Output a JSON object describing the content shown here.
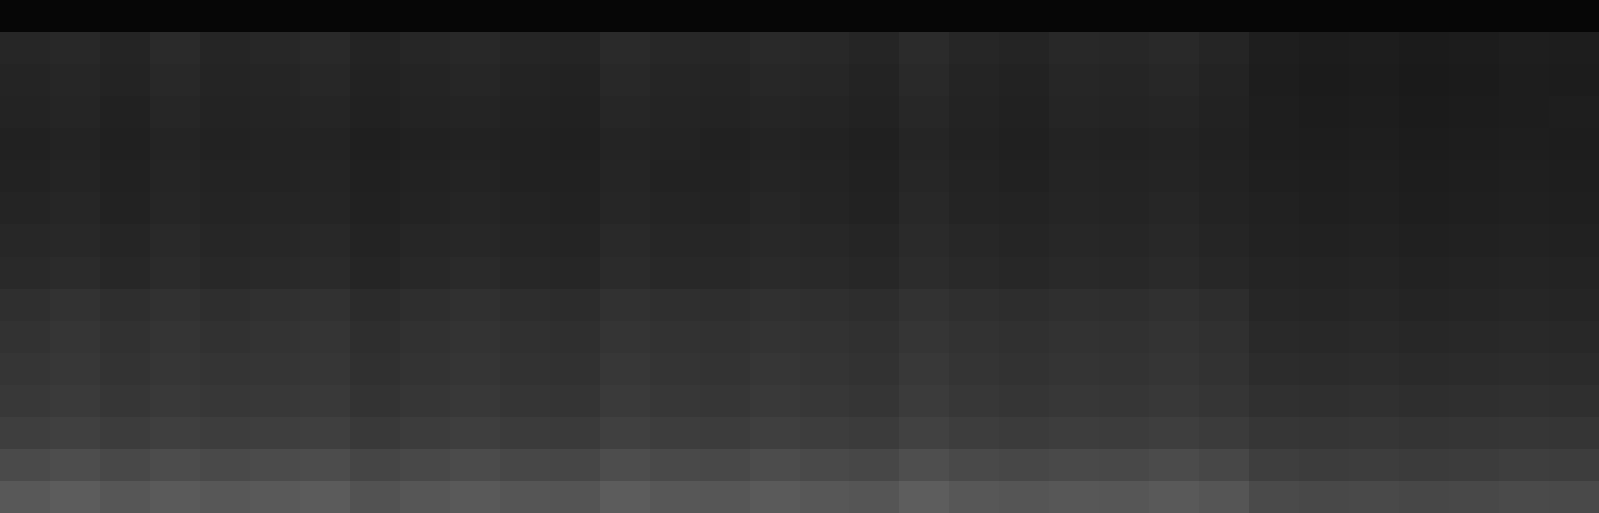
{
  "chart_data": {
    "type": "heatmap",
    "tick_labels": false,
    "grid": false,
    "zlim": [
      0,
      255
    ],
    "cells": [
      [
        6,
        6,
        6,
        6,
        6,
        6,
        6,
        6,
        6,
        6,
        6,
        6,
        6,
        6,
        6,
        6,
        6,
        6,
        6,
        6,
        6,
        6,
        6,
        6,
        6,
        6,
        6,
        6,
        6,
        6,
        6,
        6
      ],
      [
        38,
        40,
        36,
        42,
        37,
        39,
        41,
        35,
        38,
        40,
        37,
        36,
        42,
        39,
        38,
        41,
        40,
        37,
        43,
        38,
        36,
        40,
        39,
        41,
        37,
        30,
        28,
        29,
        27,
        28,
        30,
        29
      ],
      [
        36,
        38,
        35,
        40,
        36,
        37,
        39,
        34,
        36,
        38,
        35,
        34,
        40,
        37,
        36,
        39,
        38,
        35,
        41,
        36,
        34,
        38,
        37,
        39,
        35,
        29,
        27,
        28,
        26,
        27,
        29,
        28
      ],
      [
        35,
        37,
        33,
        38,
        35,
        36,
        37,
        33,
        35,
        36,
        34,
        33,
        38,
        36,
        35,
        37,
        36,
        34,
        39,
        35,
        33,
        37,
        36,
        37,
        34,
        30,
        28,
        29,
        27,
        28,
        29,
        30
      ],
      [
        33,
        35,
        32,
        36,
        34,
        35,
        35,
        31,
        33,
        34,
        33,
        32,
        36,
        35,
        33,
        35,
        34,
        32,
        37,
        34,
        32,
        35,
        34,
        35,
        33,
        30,
        29,
        30,
        28,
        29,
        30,
        29
      ],
      [
        34,
        36,
        33,
        37,
        35,
        35,
        36,
        32,
        34,
        35,
        33,
        33,
        37,
        34,
        34,
        36,
        35,
        33,
        38,
        35,
        33,
        36,
        35,
        36,
        34,
        31,
        30,
        31,
        29,
        30,
        31,
        30
      ],
      [
        36,
        38,
        34,
        38,
        36,
        37,
        37,
        33,
        35,
        37,
        35,
        34,
        38,
        36,
        35,
        38,
        36,
        34,
        40,
        36,
        35,
        37,
        36,
        38,
        35,
        33,
        31,
        32,
        30,
        31,
        32,
        31
      ],
      [
        39,
        40,
        37,
        41,
        38,
        39,
        40,
        35,
        38,
        39,
        37,
        36,
        41,
        38,
        38,
        40,
        39,
        37,
        42,
        39,
        37,
        39,
        38,
        40,
        37,
        34,
        33,
        34,
        32,
        33,
        34,
        33
      ],
      [
        41,
        43,
        39,
        43,
        40,
        41,
        42,
        37,
        40,
        42,
        39,
        38,
        43,
        40,
        40,
        42,
        41,
        39,
        44,
        41,
        39,
        41,
        40,
        42,
        39,
        36,
        35,
        36,
        34,
        35,
        36,
        35
      ],
      [
        47,
        50,
        46,
        49,
        46,
        48,
        49,
        43,
        46,
        48,
        45,
        44,
        49,
        47,
        46,
        48,
        47,
        45,
        50,
        47,
        45,
        47,
        46,
        48,
        45,
        38,
        37,
        38,
        36,
        37,
        38,
        37
      ],
      [
        50,
        53,
        49,
        52,
        49,
        51,
        52,
        46,
        49,
        51,
        48,
        47,
        52,
        50,
        49,
        51,
        50,
        48,
        53,
        50,
        48,
        50,
        49,
        51,
        48,
        41,
        40,
        41,
        39,
        40,
        41,
        40
      ],
      [
        53,
        55,
        51,
        54,
        52,
        53,
        54,
        48,
        51,
        53,
        50,
        49,
        55,
        52,
        51,
        54,
        52,
        50,
        56,
        52,
        50,
        52,
        51,
        53,
        50,
        44,
        43,
        44,
        42,
        43,
        44,
        43
      ],
      [
        56,
        58,
        54,
        57,
        55,
        56,
        57,
        51,
        54,
        56,
        53,
        52,
        58,
        55,
        54,
        57,
        55,
        53,
        59,
        55,
        53,
        55,
        54,
        56,
        53,
        48,
        47,
        48,
        46,
        47,
        48,
        47
      ],
      [
        62,
        64,
        60,
        63,
        61,
        62,
        63,
        57,
        60,
        62,
        59,
        58,
        64,
        61,
        60,
        63,
        61,
        59,
        65,
        61,
        59,
        61,
        60,
        62,
        59,
        54,
        53,
        54,
        52,
        53,
        54,
        53
      ],
      [
        74,
        77,
        72,
        76,
        73,
        75,
        76,
        69,
        72,
        75,
        71,
        70,
        77,
        73,
        72,
        76,
        73,
        71,
        78,
        73,
        71,
        73,
        72,
        75,
        71,
        62,
        60,
        61,
        59,
        60,
        62,
        61
      ],
      [
        88,
        92,
        86,
        90,
        87,
        89,
        91,
        82,
        86,
        89,
        85,
        84,
        92,
        87,
        86,
        90,
        87,
        85,
        93,
        87,
        85,
        87,
        86,
        89,
        85,
        74,
        72,
        73,
        71,
        72,
        74,
        73
      ]
    ]
  }
}
